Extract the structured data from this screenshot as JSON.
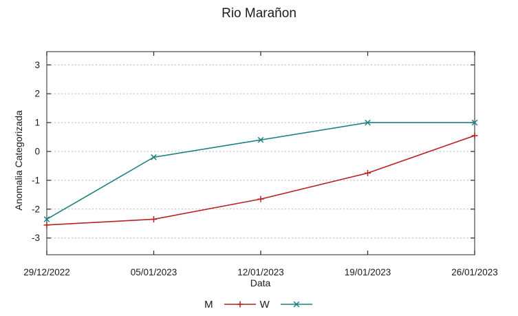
{
  "chart_data": {
    "type": "line",
    "title": "Rio Marañon",
    "xlabel": "Data",
    "ylabel": "Anomalia Categorizada",
    "categories": [
      "29/12/2022",
      "05/01/2023",
      "12/01/2023",
      "19/01/2023",
      "26/01/2023"
    ],
    "series": [
      {
        "name": "M",
        "color": "#b52121",
        "marker": "plus",
        "values": [
          -2.55,
          -2.35,
          -1.65,
          -0.75,
          0.55
        ]
      },
      {
        "name": "W",
        "color": "#1f8080",
        "marker": "cross",
        "values": [
          -2.35,
          -0.2,
          0.4,
          1.0,
          1.0
        ]
      }
    ],
    "y_ticks": [
      -3,
      -2,
      -1,
      0,
      1,
      2,
      3
    ],
    "ylim": [
      -3.58,
      3.46
    ],
    "grid": "horizontal-dotted",
    "legend_position": "bottom-center",
    "colors": {
      "grid": "#b4b4b4",
      "border": "#4a4a4a",
      "tick": "#333333",
      "text": "#1a1a1a",
      "background": "#ffffff"
    }
  }
}
